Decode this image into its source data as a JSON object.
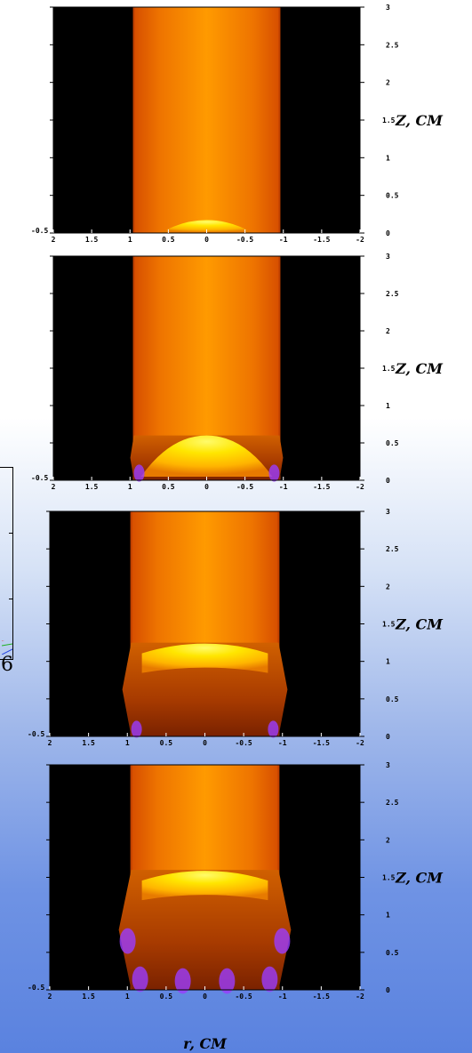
{
  "colors": {
    "background_top": "#ffffff",
    "background_bottom": "#5a82df",
    "plot_background": "#000000",
    "plasma_core": "#ff9a00",
    "plasma_edge": "#d64e00",
    "hot_front": "#ffe600",
    "edge_violet": "#9b3cff"
  },
  "axes": {
    "x_tick_labels": [
      "2",
      "1.5",
      "1",
      "0.5",
      "0",
      "-0.5",
      "-1",
      "-1.5",
      "-2"
    ],
    "y_tick_labels": [
      "3",
      "2.5",
      "2",
      "1.5",
      "1",
      "0.5",
      "0"
    ],
    "ylabel": "Z, CM",
    "xlabel": "r, CM",
    "bottom_left_label": "-0.5"
  },
  "chart_data": [
    {
      "type": "heatmap",
      "panel": 1,
      "xlim": [
        2,
        -2
      ],
      "ylim": [
        0,
        3
      ],
      "ylabel": "Z, CM",
      "column_halfwidth": 0.95,
      "front_height": 0.25
    },
    {
      "type": "heatmap",
      "panel": 2,
      "xlim": [
        2,
        -2
      ],
      "ylim": [
        0,
        3
      ],
      "ylabel": "Z, CM",
      "column_halfwidth": 0.95,
      "front_height": 0.6
    },
    {
      "type": "heatmap",
      "panel": 3,
      "xlim": [
        2,
        -2
      ],
      "ylim": [
        0,
        3
      ],
      "ylabel": "Z, CM",
      "xlabel": "r, CM",
      "column_halfwidth": 0.95,
      "front_height": 1.25
    },
    {
      "type": "heatmap",
      "panel": 4,
      "xlim": [
        2,
        -2
      ],
      "ylim": [
        0,
        3
      ],
      "ylabel": "Z, CM",
      "xlabel": "r, CM",
      "column_halfwidth": 0.95,
      "front_height": 1.6
    }
  ],
  "fragment_label": "6"
}
